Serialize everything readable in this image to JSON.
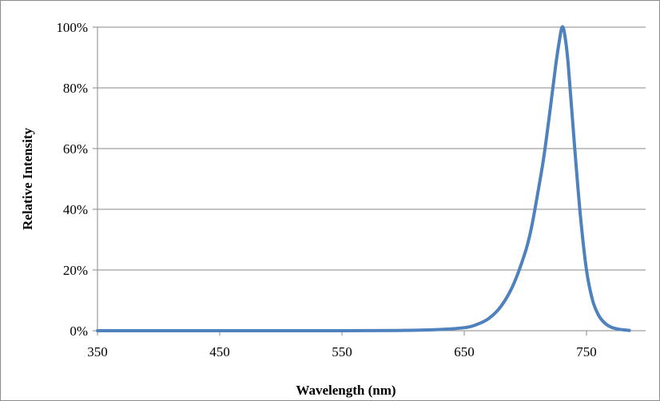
{
  "chart_data": {
    "type": "line",
    "title": "",
    "xlabel": "Wavelength  (nm)",
    "ylabel": "Relative  Intensity",
    "xlim": [
      350,
      790
    ],
    "ylim": [
      0,
      100
    ],
    "x_ticks": [
      350,
      450,
      550,
      650,
      750
    ],
    "x_tick_labels": [
      "350",
      "450",
      "550",
      "650",
      "750"
    ],
    "y_ticks": [
      0,
      20,
      40,
      60,
      80,
      100
    ],
    "y_tick_labels": [
      "0%",
      "20%",
      "40%",
      "60%",
      "80%",
      "100%"
    ],
    "grid": "horizontal",
    "legend": "none",
    "line_color": "#4f81bd",
    "series": [
      {
        "x": [
          350,
          450,
          550,
          600,
          630,
          650,
          660,
          670,
          680,
          690,
          700,
          705,
          710,
          715,
          720,
          725,
          728,
          730,
          732,
          735,
          740,
          745,
          750,
          755,
          760,
          765,
          770,
          775,
          780,
          785
        ],
        "values": [
          0,
          0,
          0,
          0.1,
          0.4,
          1,
          2,
          4,
          8,
          15,
          26,
          34,
          45,
          57,
          72,
          88,
          96,
          100,
          98,
          88,
          62,
          38,
          20,
          10,
          5,
          2.5,
          1.2,
          0.6,
          0.3,
          0.1
        ]
      }
    ]
  }
}
